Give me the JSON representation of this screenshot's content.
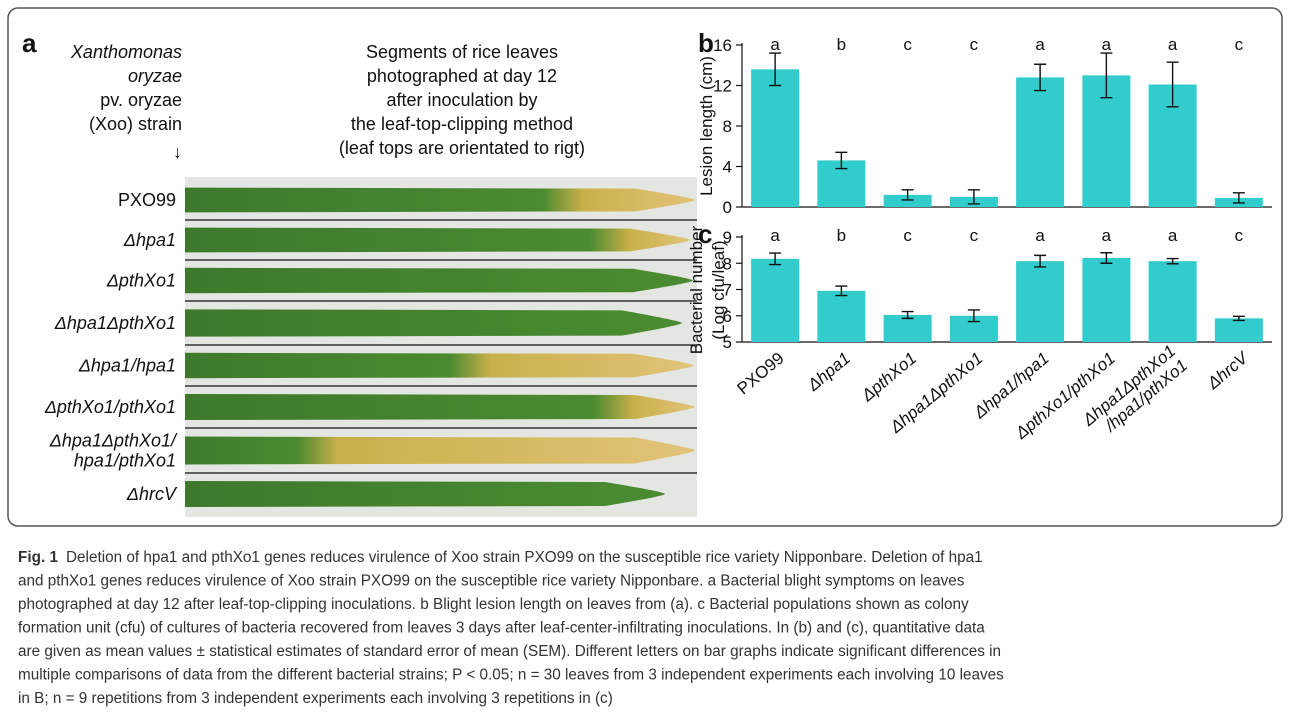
{
  "panel_a": {
    "letter": "a",
    "strain_header": [
      "Xanthomonas",
      "oryzae",
      "pv. oryzae",
      "(Xoo) strain",
      "↓"
    ],
    "photo_header": [
      "Segments of rice leaves",
      "photographed at day 12",
      "after inoculation by",
      "the leaf-top-clipping method",
      "(leaf tops are orientated to rigt)"
    ],
    "strains": [
      "PXO99",
      "Δhpa1",
      "ΔpthXo1",
      "Δhpa1ΔpthXo1",
      "Δhpa1/hpa1",
      "ΔpthXo1/pthXo1",
      "Δhpa1ΔpthXo1/\nhpa1/pthXo1",
      "ΔhrcV"
    ]
  },
  "chart_data": [
    {
      "type": "bar",
      "letter": "b",
      "y_label": [
        "Lesion length (cm)"
      ],
      "categories": [
        null,
        null,
        null,
        null,
        null,
        null,
        null,
        null
      ],
      "values": [
        13.6,
        4.6,
        1.2,
        1.0,
        12.8,
        13.0,
        12.1,
        0.9
      ],
      "errors": [
        1.6,
        0.8,
        0.5,
        0.7,
        1.3,
        2.2,
        2.2,
        0.5
      ],
      "annotations": [
        "a",
        "b",
        "c",
        "c",
        "a",
        "a",
        "a",
        "c"
      ],
      "color": "#33cccc",
      "ylim": [
        0,
        16
      ],
      "yticks": [
        0,
        4,
        8,
        12,
        16
      ]
    },
    {
      "type": "bar",
      "letter": "c",
      "y_label": [
        "Bacterial number",
        "(Log cfu/leaf)"
      ],
      "categories": [
        "PXO99",
        "Δhpa1",
        "ΔpthXo1",
        "Δhpa1ΔpthXo1",
        "Δhpa1/hpa1",
        "ΔpthXo1/pthXo1",
        "Δhpa1ΔpthXo1\n/hpa1/pthXo1",
        "ΔhrcV"
      ],
      "values": [
        8.17,
        6.95,
        6.03,
        6.0,
        8.08,
        8.2,
        8.08,
        5.9
      ],
      "errors": [
        0.22,
        0.18,
        0.13,
        0.22,
        0.22,
        0.2,
        0.1,
        0.08
      ],
      "annotations": [
        "a",
        "b",
        "c",
        "c",
        "a",
        "a",
        "a",
        "c"
      ],
      "color": "#33cccc",
      "ylim": [
        5,
        9
      ],
      "yticks": [
        5,
        6,
        7,
        8,
        9
      ]
    }
  ],
  "caption": {
    "label": "Fig. 1",
    "lines": [
      "Deletion of hpa1 and pthXo1 genes reduces virulence of Xoo strain PXO99 on the susceptible rice variety Nipponbare. Deletion of hpa1",
      "and pthXo1 genes reduces virulence of Xoo strain PXO99 on the susceptible rice variety Nipponbare. a Bacterial blight symptoms on leaves",
      "photographed at day 12 after leaf-top-clipping inoculations. b Blight lesion length on leaves from (a). c Bacterial populations shown as colony",
      "formation unit (cfu) of cultures of bacteria recovered from leaves 3 days after leaf-center-infiltrating inoculations. In (b) and (c), quantitative data",
      "are given as mean values ± statistical estimates of standard error of mean (SEM). Different letters on bar graphs indicate significant differences in",
      "multiple comparisons of data from the different bacterial strains; P < 0.05; n = 30 leaves from 3 independent experiments each involving 10 leaves",
      "in B; n = 9 repetitions from 3 independent experiments each involving 3 repetitions in (c)"
    ]
  }
}
